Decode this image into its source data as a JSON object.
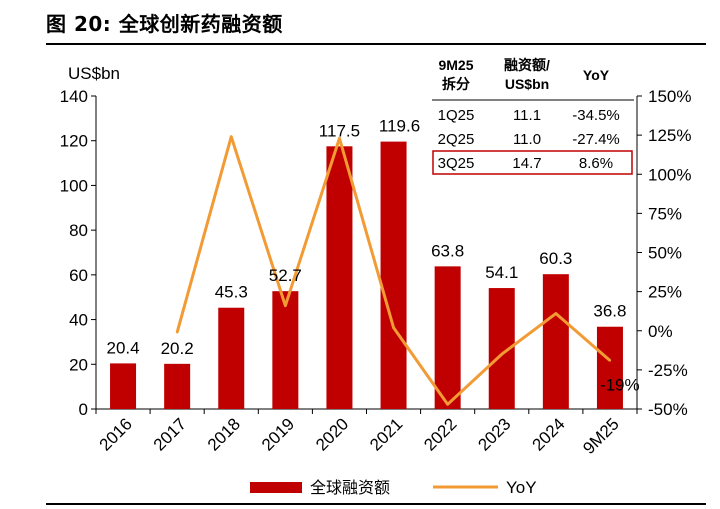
{
  "figure_title": "图 20: 全球创新药融资额",
  "chart_data": {
    "type": "bar",
    "categories": [
      "2016",
      "2017",
      "2018",
      "2019",
      "2020",
      "2021",
      "2022",
      "2023",
      "2024",
      "9M25"
    ],
    "series": [
      {
        "name": "全球融资额",
        "kind": "bar",
        "axis": "left",
        "values": [
          20.4,
          20.2,
          45.3,
          52.7,
          117.5,
          119.6,
          63.8,
          54.1,
          60.3,
          36.8
        ],
        "labels": [
          "20.4",
          "20.2",
          "45.3",
          "52.7",
          "117.5",
          "119.6",
          "63.8",
          "54.1",
          "60.3",
          "36.8"
        ]
      },
      {
        "name": "YoY",
        "kind": "line",
        "axis": "right",
        "values": [
          null,
          -1,
          124,
          16,
          123,
          2,
          -47,
          -15,
          11,
          -19
        ],
        "point_labels": [
          null,
          null,
          null,
          null,
          null,
          null,
          null,
          null,
          null,
          "-19%"
        ]
      }
    ],
    "ylabel": "US$bn",
    "ylim": [
      0,
      140
    ],
    "yticks": [
      "0",
      "20",
      "40",
      "60",
      "80",
      "100",
      "120",
      "140"
    ],
    "y2lim": [
      -50,
      150
    ],
    "y2ticks": [
      "-50%",
      "-25%",
      "0%",
      "25%",
      "50%",
      "75%",
      "100%",
      "125%",
      "150%"
    ],
    "legend_position": "bottom",
    "grid": false,
    "colors": {
      "bar": "#C00000",
      "line": "#F29B34",
      "highlight": "#C00000"
    },
    "inset_table": {
      "headers": [
        "9M25\n拆分",
        "融资额/\nUS$bn",
        "YoY"
      ],
      "rows": [
        [
          "1Q25",
          "11.1",
          "-34.5%"
        ],
        [
          "2Q25",
          "11.0",
          "-27.4%"
        ],
        [
          "3Q25",
          "14.7",
          "8.6%"
        ]
      ],
      "highlight_row": 2
    }
  }
}
